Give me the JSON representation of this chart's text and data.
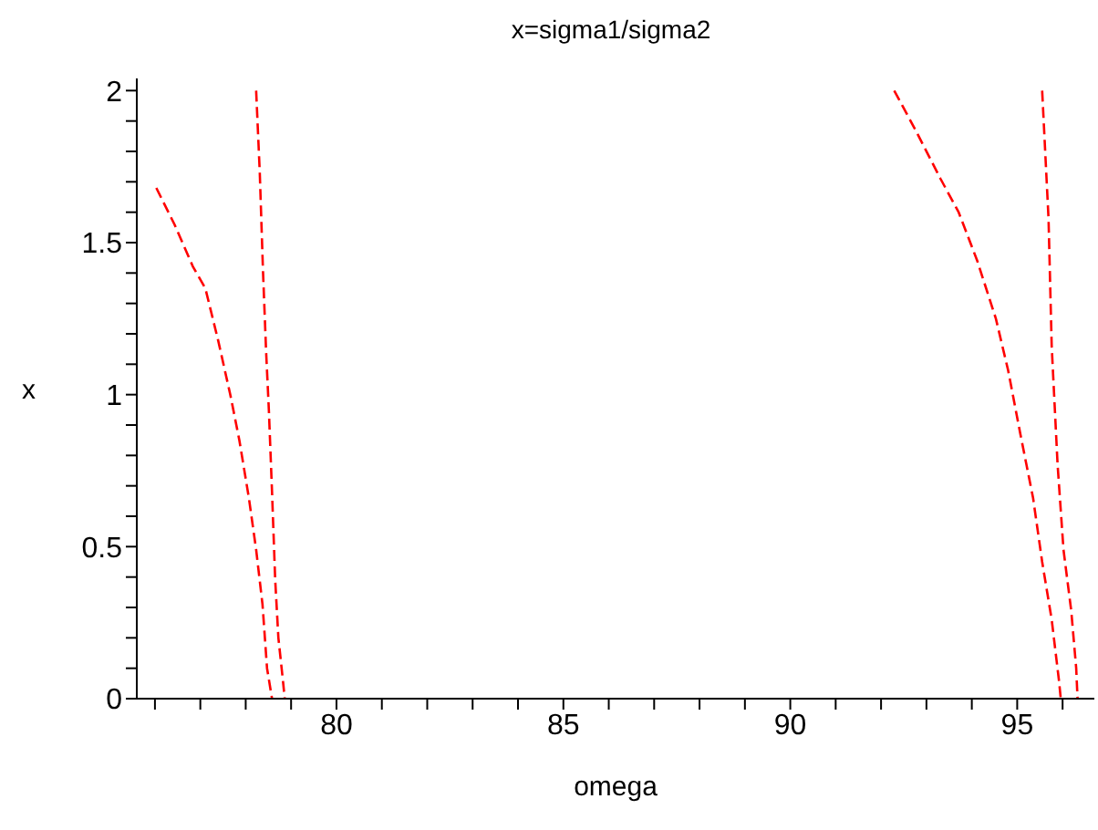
{
  "chart_data": {
    "type": "line",
    "title": "x=sigma1/sigma2",
    "xlabel": "omega",
    "ylabel": "x",
    "xlim": [
      75.6,
      96.7
    ],
    "ylim": [
      0,
      2.04
    ],
    "xticks": [
      {
        "value": 76,
        "label": null
      },
      {
        "value": 77,
        "label": null
      },
      {
        "value": 78,
        "label": null
      },
      {
        "value": 79,
        "label": null
      },
      80,
      {
        "value": 81,
        "label": null
      },
      {
        "value": 82,
        "label": null
      },
      {
        "value": 83,
        "label": null
      },
      {
        "value": 84,
        "label": null
      },
      85,
      {
        "value": 86,
        "label": null
      },
      {
        "value": 87,
        "label": null
      },
      {
        "value": 88,
        "label": null
      },
      {
        "value": 89,
        "label": null
      },
      90,
      {
        "value": 91,
        "label": null
      },
      {
        "value": 92,
        "label": null
      },
      {
        "value": 93,
        "label": null
      },
      {
        "value": 94,
        "label": null
      },
      95,
      {
        "value": 96,
        "label": null
      }
    ],
    "yticks": [
      0,
      {
        "value": 0.1,
        "label": null
      },
      {
        "value": 0.2,
        "label": null
      },
      {
        "value": 0.3,
        "label": null
      },
      {
        "value": 0.4,
        "label": null
      },
      0.5,
      {
        "value": 0.6,
        "label": null
      },
      {
        "value": 0.7,
        "label": null
      },
      {
        "value": 0.8,
        "label": null
      },
      {
        "value": 0.9,
        "label": null
      },
      1,
      {
        "value": 1.1,
        "label": null
      },
      {
        "value": 1.2,
        "label": null
      },
      {
        "value": 1.3,
        "label": null
      },
      {
        "value": 1.4,
        "label": null
      },
      1.5,
      {
        "value": 1.6,
        "label": null
      },
      {
        "value": 1.7,
        "label": null
      },
      {
        "value": 1.8,
        "label": null
      },
      {
        "value": 1.9,
        "label": null
      },
      2
    ],
    "grid": false,
    "marker": "none",
    "line_style": "dashed",
    "series": [
      {
        "color": "#ff0000",
        "x": [
          76.03,
          76.43,
          76.84,
          77.11,
          77.39,
          77.66,
          77.86,
          78.07,
          78.23,
          78.37,
          78.47,
          78.58
        ],
        "values": [
          1.68,
          1.56,
          1.42,
          1.35,
          1.18,
          1.0,
          0.85,
          0.66,
          0.49,
          0.31,
          0.1,
          0
        ]
      },
      {
        "color": "#ff0000",
        "x": [
          78.23,
          78.31,
          78.38,
          78.45,
          78.51,
          78.58,
          78.65,
          78.72,
          78.82,
          78.86
        ],
        "values": [
          2.0,
          1.73,
          1.41,
          1.14,
          0.95,
          0.68,
          0.39,
          0.2,
          0.06,
          0
        ]
      },
      {
        "color": "#ff0000",
        "x": [
          92.29,
          92.76,
          93.31,
          93.71,
          94.12,
          94.53,
          94.8,
          95.07,
          95.35,
          95.55,
          95.76,
          95.92,
          95.96
        ],
        "values": [
          2.0,
          1.87,
          1.71,
          1.6,
          1.44,
          1.25,
          1.08,
          0.87,
          0.66,
          0.45,
          0.26,
          0.06,
          0
        ]
      },
      {
        "color": "#ff0000",
        "x": [
          95.55,
          95.69,
          95.76,
          95.89,
          96.02,
          96.19,
          96.3,
          96.33
        ],
        "values": [
          2.0,
          1.58,
          1.16,
          0.77,
          0.49,
          0.29,
          0.1,
          0
        ]
      }
    ]
  }
}
